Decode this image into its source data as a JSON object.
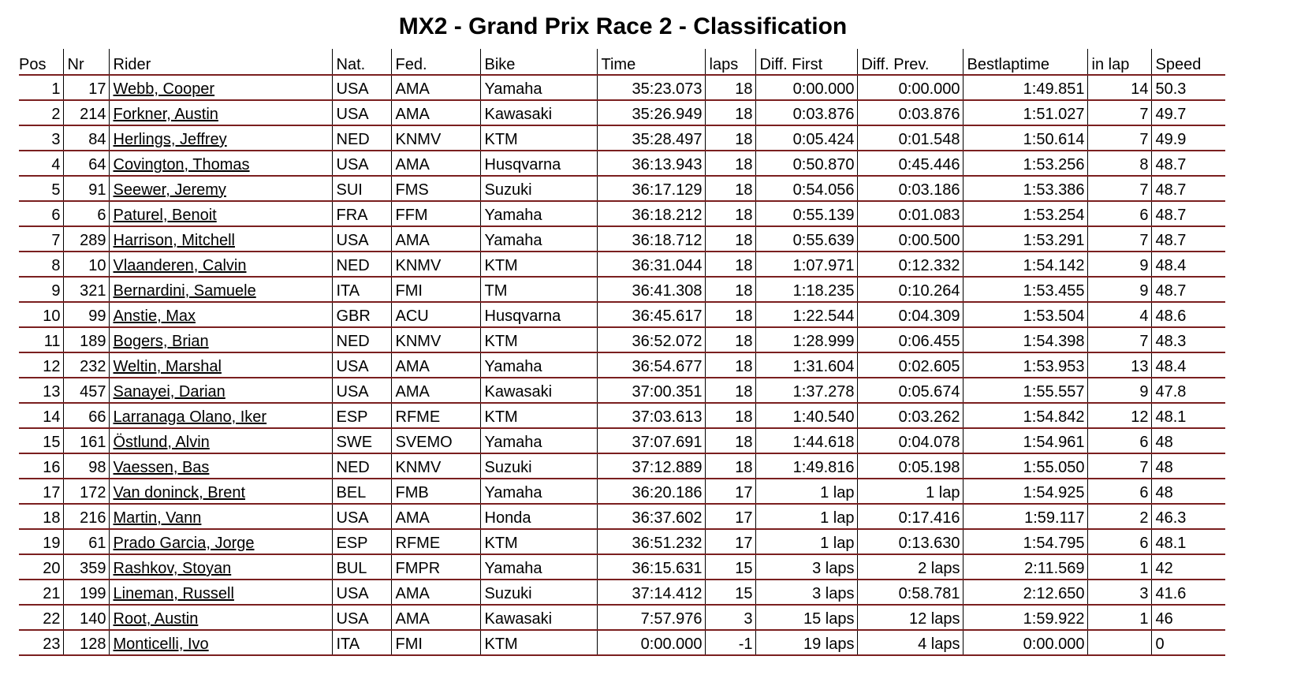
{
  "title": "MX2 - Grand Prix Race 2 - Classification",
  "colors": {
    "row_border": "#7a1f1f",
    "text": "#000000",
    "background": "#ffffff"
  },
  "columns": [
    "Pos",
    "Nr",
    "Rider",
    "Nat.",
    "Fed.",
    "Bike",
    "Time",
    "laps",
    "Diff. First",
    "Diff. Prev.",
    "Bestlaptime",
    "in lap",
    "Speed"
  ],
  "rows": [
    {
      "pos": "1",
      "nr": "17",
      "rider": "Webb, Cooper",
      "nat": "USA",
      "fed": "AMA",
      "bike": "Yamaha",
      "time": "35:23.073",
      "laps": "18",
      "diff_first": "0:00.000",
      "diff_prev": "0:00.000",
      "bestlap": "1:49.851",
      "in_lap": "14",
      "speed": "50.3"
    },
    {
      "pos": "2",
      "nr": "214",
      "rider": "Forkner, Austin",
      "nat": "USA",
      "fed": "AMA",
      "bike": "Kawasaki",
      "time": "35:26.949",
      "laps": "18",
      "diff_first": "0:03.876",
      "diff_prev": "0:03.876",
      "bestlap": "1:51.027",
      "in_lap": "7",
      "speed": "49.7"
    },
    {
      "pos": "3",
      "nr": "84",
      "rider": "Herlings, Jeffrey",
      "nat": "NED",
      "fed": "KNMV",
      "bike": "KTM",
      "time": "35:28.497",
      "laps": "18",
      "diff_first": "0:05.424",
      "diff_prev": "0:01.548",
      "bestlap": "1:50.614",
      "in_lap": "7",
      "speed": "49.9"
    },
    {
      "pos": "4",
      "nr": "64",
      "rider": "Covington, Thomas",
      "nat": "USA",
      "fed": "AMA",
      "bike": "Husqvarna",
      "time": "36:13.943",
      "laps": "18",
      "diff_first": "0:50.870",
      "diff_prev": "0:45.446",
      "bestlap": "1:53.256",
      "in_lap": "8",
      "speed": "48.7"
    },
    {
      "pos": "5",
      "nr": "91",
      "rider": "Seewer, Jeremy",
      "nat": "SUI",
      "fed": "FMS",
      "bike": "Suzuki",
      "time": "36:17.129",
      "laps": "18",
      "diff_first": "0:54.056",
      "diff_prev": "0:03.186",
      "bestlap": "1:53.386",
      "in_lap": "7",
      "speed": "48.7"
    },
    {
      "pos": "6",
      "nr": "6",
      "rider": "Paturel, Benoit",
      "nat": "FRA",
      "fed": "FFM",
      "bike": "Yamaha",
      "time": "36:18.212",
      "laps": "18",
      "diff_first": "0:55.139",
      "diff_prev": "0:01.083",
      "bestlap": "1:53.254",
      "in_lap": "6",
      "speed": "48.7"
    },
    {
      "pos": "7",
      "nr": "289",
      "rider": "Harrison, Mitchell",
      "nat": "USA",
      "fed": "AMA",
      "bike": "Yamaha",
      "time": "36:18.712",
      "laps": "18",
      "diff_first": "0:55.639",
      "diff_prev": "0:00.500",
      "bestlap": "1:53.291",
      "in_lap": "7",
      "speed": "48.7"
    },
    {
      "pos": "8",
      "nr": "10",
      "rider": "Vlaanderen, Calvin",
      "nat": "NED",
      "fed": "KNMV",
      "bike": "KTM",
      "time": "36:31.044",
      "laps": "18",
      "diff_first": "1:07.971",
      "diff_prev": "0:12.332",
      "bestlap": "1:54.142",
      "in_lap": "9",
      "speed": "48.4"
    },
    {
      "pos": "9",
      "nr": "321",
      "rider": "Bernardini, Samuele",
      "nat": "ITA",
      "fed": "FMI",
      "bike": "TM",
      "time": "36:41.308",
      "laps": "18",
      "diff_first": "1:18.235",
      "diff_prev": "0:10.264",
      "bestlap": "1:53.455",
      "in_lap": "9",
      "speed": "48.7"
    },
    {
      "pos": "10",
      "nr": "99",
      "rider": "Anstie, Max",
      "nat": "GBR",
      "fed": "ACU",
      "bike": "Husqvarna",
      "time": "36:45.617",
      "laps": "18",
      "diff_first": "1:22.544",
      "diff_prev": "0:04.309",
      "bestlap": "1:53.504",
      "in_lap": "4",
      "speed": "48.6"
    },
    {
      "pos": "11",
      "nr": "189",
      "rider": "Bogers, Brian",
      "nat": "NED",
      "fed": "KNMV",
      "bike": "KTM",
      "time": "36:52.072",
      "laps": "18",
      "diff_first": "1:28.999",
      "diff_prev": "0:06.455",
      "bestlap": "1:54.398",
      "in_lap": "7",
      "speed": "48.3"
    },
    {
      "pos": "12",
      "nr": "232",
      "rider": "Weltin, Marshal",
      "nat": "USA",
      "fed": "AMA",
      "bike": "Yamaha",
      "time": "36:54.677",
      "laps": "18",
      "diff_first": "1:31.604",
      "diff_prev": "0:02.605",
      "bestlap": "1:53.953",
      "in_lap": "13",
      "speed": "48.4"
    },
    {
      "pos": "13",
      "nr": "457",
      "rider": "Sanayei, Darian",
      "nat": "USA",
      "fed": "AMA",
      "bike": "Kawasaki",
      "time": "37:00.351",
      "laps": "18",
      "diff_first": "1:37.278",
      "diff_prev": "0:05.674",
      "bestlap": "1:55.557",
      "in_lap": "9",
      "speed": "47.8"
    },
    {
      "pos": "14",
      "nr": "66",
      "rider": "Larranaga Olano, Iker",
      "nat": "ESP",
      "fed": "RFME",
      "bike": "KTM",
      "time": "37:03.613",
      "laps": "18",
      "diff_first": "1:40.540",
      "diff_prev": "0:03.262",
      "bestlap": "1:54.842",
      "in_lap": "12",
      "speed": "48.1"
    },
    {
      "pos": "15",
      "nr": "161",
      "rider": "Östlund, Alvin",
      "nat": "SWE",
      "fed": "SVEMO",
      "bike": "Yamaha",
      "time": "37:07.691",
      "laps": "18",
      "diff_first": "1:44.618",
      "diff_prev": "0:04.078",
      "bestlap": "1:54.961",
      "in_lap": "6",
      "speed": "48"
    },
    {
      "pos": "16",
      "nr": "98",
      "rider": "Vaessen, Bas",
      "nat": "NED",
      "fed": "KNMV",
      "bike": "Suzuki",
      "time": "37:12.889",
      "laps": "18",
      "diff_first": "1:49.816",
      "diff_prev": "0:05.198",
      "bestlap": "1:55.050",
      "in_lap": "7",
      "speed": "48"
    },
    {
      "pos": "17",
      "nr": "172",
      "rider": "Van doninck, Brent",
      "nat": "BEL",
      "fed": "FMB",
      "bike": "Yamaha",
      "time": "36:20.186",
      "laps": "17",
      "diff_first": "1 lap",
      "diff_prev": "1 lap",
      "bestlap": "1:54.925",
      "in_lap": "6",
      "speed": "48"
    },
    {
      "pos": "18",
      "nr": "216",
      "rider": "Martin, Vann",
      "nat": "USA",
      "fed": "AMA",
      "bike": "Honda",
      "time": "36:37.602",
      "laps": "17",
      "diff_first": "1 lap",
      "diff_prev": "0:17.416",
      "bestlap": "1:59.117",
      "in_lap": "2",
      "speed": "46.3"
    },
    {
      "pos": "19",
      "nr": "61",
      "rider": "Prado Garcia, Jorge",
      "nat": "ESP",
      "fed": "RFME",
      "bike": "KTM",
      "time": "36:51.232",
      "laps": "17",
      "diff_first": "1 lap",
      "diff_prev": "0:13.630",
      "bestlap": "1:54.795",
      "in_lap": "6",
      "speed": "48.1"
    },
    {
      "pos": "20",
      "nr": "359",
      "rider": "Rashkov, Stoyan",
      "nat": "BUL",
      "fed": "FMPR",
      "bike": "Yamaha",
      "time": "36:15.631",
      "laps": "15",
      "diff_first": "3 laps",
      "diff_prev": "2 laps",
      "bestlap": "2:11.569",
      "in_lap": "1",
      "speed": "42"
    },
    {
      "pos": "21",
      "nr": "199",
      "rider": "Lineman, Russell",
      "nat": "USA",
      "fed": "AMA",
      "bike": "Suzuki",
      "time": "37:14.412",
      "laps": "15",
      "diff_first": "3 laps",
      "diff_prev": "0:58.781",
      "bestlap": "2:12.650",
      "in_lap": "3",
      "speed": "41.6"
    },
    {
      "pos": "22",
      "nr": "140",
      "rider": "Root, Austin",
      "nat": "USA",
      "fed": "AMA",
      "bike": "Kawasaki",
      "time": "7:57.976",
      "laps": "3",
      "diff_first": "15 laps",
      "diff_prev": "12 laps",
      "bestlap": "1:59.922",
      "in_lap": "1",
      "speed": "46"
    },
    {
      "pos": "23",
      "nr": "128",
      "rider": "Monticelli, Ivo",
      "nat": "ITA",
      "fed": "FMI",
      "bike": "KTM",
      "time": "0:00.000",
      "laps": "-1",
      "diff_first": "19 laps",
      "diff_prev": "4 laps",
      "bestlap": "0:00.000",
      "in_lap": "",
      "speed": "0"
    }
  ]
}
